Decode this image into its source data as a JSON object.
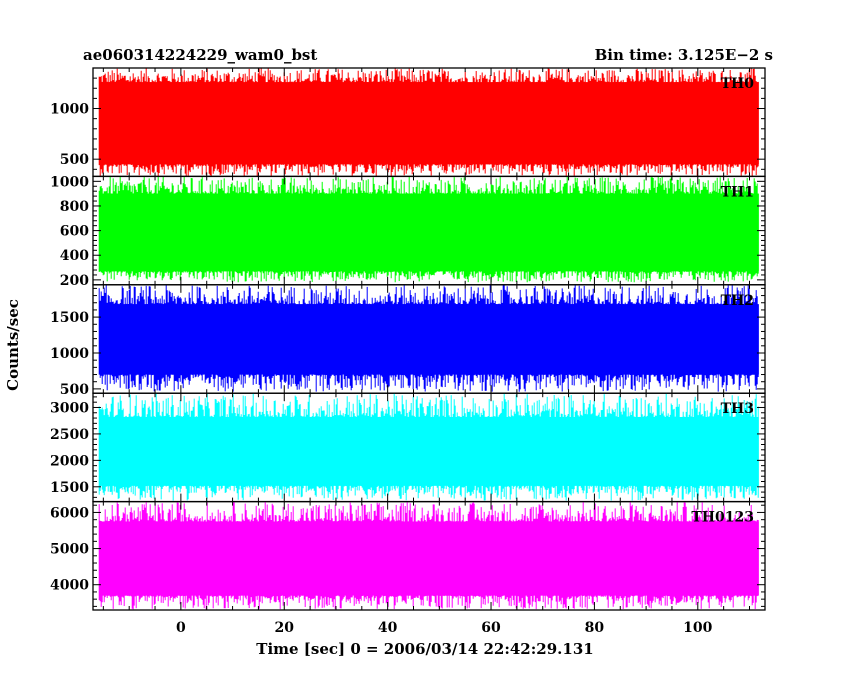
{
  "header": {
    "left_title": "ae060314224229_wam0_bst",
    "right_title": "Bin time: 3.125E−2 s"
  },
  "chart_data": {
    "type": "line",
    "title": "ae060314224229_wam0_bst",
    "subtitle": "Bin time: 3.125E−2 s",
    "xlabel": "Time [sec] 0 = 2006/03/14 22:42:29.131",
    "ylabel": "Counts/sec",
    "xlim": [
      -17,
      113
    ],
    "x_data_range": [
      -15.8,
      111.8
    ],
    "x_ticks": [
      0,
      20,
      40,
      60,
      80,
      100
    ],
    "grid": false,
    "panels": [
      {
        "name": "TH0",
        "color": "#ff0000",
        "ylim": [
          330,
          1400
        ],
        "band_low": 450,
        "band_high": 1260,
        "min": 330,
        "max": 1400,
        "y_ticks": [
          500,
          1000
        ]
      },
      {
        "name": "TH1",
        "color": "#00ff00",
        "ylim": [
          160,
          1040
        ],
        "band_low": 270,
        "band_high": 900,
        "min": 180,
        "max": 1040,
        "y_ticks": [
          200,
          400,
          600,
          800,
          1000
        ]
      },
      {
        "name": "TH2",
        "color": "#0000ff",
        "ylim": [
          440,
          1950
        ],
        "band_low": 700,
        "band_high": 1680,
        "min": 460,
        "max": 1950,
        "y_ticks": [
          500,
          1000,
          1500
        ]
      },
      {
        "name": "TH3",
        "color": "#00ffff",
        "ylim": [
          1220,
          3270
        ],
        "band_low": 1520,
        "band_high": 2820,
        "min": 1240,
        "max": 3270,
        "y_ticks": [
          1500,
          2000,
          2500,
          3000
        ]
      },
      {
        "name": "TH0123",
        "color": "#ff00ff",
        "ylim": [
          3300,
          6300
        ],
        "band_low": 3700,
        "band_high": 5750,
        "min": 3320,
        "max": 6300,
        "y_ticks": [
          4000,
          5000,
          6000
        ]
      }
    ]
  }
}
